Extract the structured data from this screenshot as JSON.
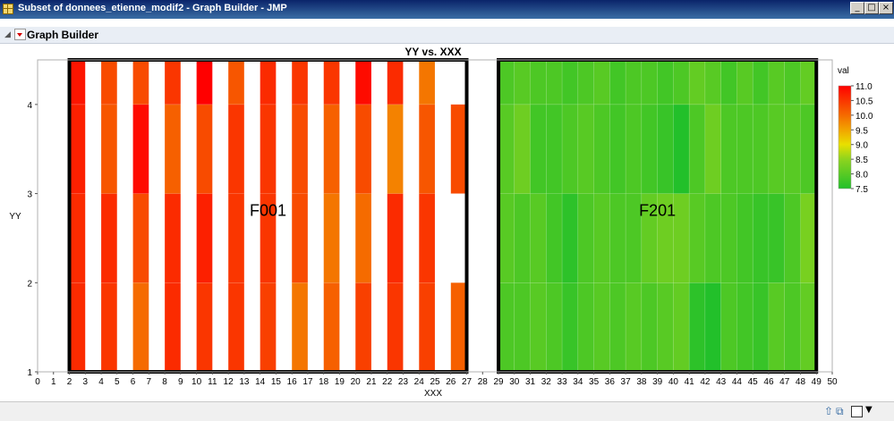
{
  "window": {
    "title": "Subset of donnees_etienne_modif2 - Graph Builder - JMP",
    "minimize_icon": "minimize-icon",
    "maximize_icon": "maximize-icon",
    "close_icon": "close-icon"
  },
  "outline": {
    "title": "Graph Builder",
    "disclosure_icon": "disclosure-triangle-icon",
    "menu_icon": "red-triangle-menu-icon"
  },
  "chart_data": {
    "type": "heatmap",
    "title": "YY vs. XXX",
    "xlabel": "XXX",
    "ylabel": "YY",
    "xlim": [
      0,
      50
    ],
    "ylim": [
      1,
      4.5
    ],
    "x_ticks": [
      0,
      1,
      2,
      3,
      4,
      5,
      6,
      7,
      8,
      9,
      10,
      11,
      12,
      13,
      14,
      15,
      16,
      17,
      18,
      19,
      20,
      21,
      22,
      23,
      24,
      25,
      26,
      27,
      28,
      29,
      30,
      31,
      32,
      33,
      34,
      35,
      36,
      37,
      38,
      39,
      40,
      41,
      42,
      43,
      44,
      45,
      46,
      47,
      48,
      49,
      50
    ],
    "y_ticks": [
      1,
      2,
      3,
      4
    ],
    "grid": false,
    "legend": {
      "title": "val",
      "ticks": [
        "11.0",
        "10.5",
        "10.0",
        "9.5",
        "9.0",
        "8.5",
        "8.0",
        "7.5"
      ],
      "min": 7.5,
      "max": 11.0,
      "placement": "right"
    },
    "color_scale": [
      {
        "value": 7.5,
        "color": "#22c02a"
      },
      {
        "value": 8.5,
        "color": "#8ed41e"
      },
      {
        "value": 9.0,
        "color": "#e8e000"
      },
      {
        "value": 9.5,
        "color": "#f2a400"
      },
      {
        "value": 10.0,
        "color": "#f56b00"
      },
      {
        "value": 11.0,
        "color": "#ff0000"
      }
    ],
    "row_bands": [
      [
        1,
        2
      ],
      [
        2,
        3
      ],
      [
        3,
        4
      ],
      [
        4,
        4.5
      ]
    ],
    "panels": [
      {
        "label": "F001",
        "x_range": [
          2,
          27
        ]
      },
      {
        "label": "F201",
        "x_range": [
          29,
          49
        ]
      }
    ],
    "columns": [
      {
        "x": 3,
        "vals": [
          10.6,
          10.6,
          10.7,
          10.8
        ]
      },
      {
        "x": 5,
        "vals": [
          10.5,
          10.6,
          10.2,
          10.3
        ]
      },
      {
        "x": 7,
        "vals": [
          10.0,
          10.3,
          10.9,
          10.3
        ]
      },
      {
        "x": 9,
        "vals": [
          10.6,
          10.6,
          10.1,
          10.5
        ]
      },
      {
        "x": 11,
        "vals": [
          10.5,
          10.7,
          10.3,
          11.0
        ]
      },
      {
        "x": 13,
        "vals": [
          10.5,
          10.5,
          10.5,
          10.2
        ]
      },
      {
        "x": 15,
        "vals": [
          10.4,
          10.5,
          10.5,
          10.6
        ]
      },
      {
        "x": 17,
        "vals": [
          9.9,
          10.3,
          10.3,
          10.5
        ]
      },
      {
        "x": 19,
        "vals": [
          10.1,
          9.9,
          10.1,
          10.5
        ]
      },
      {
        "x": 21,
        "vals": [
          10.4,
          10.0,
          10.3,
          10.9
        ]
      },
      {
        "x": 23,
        "vals": [
          10.5,
          10.6,
          9.8,
          10.6
        ]
      },
      {
        "x": 25,
        "vals": [
          10.4,
          10.5,
          10.2,
          9.9
        ]
      },
      {
        "x": 27,
        "vals": [
          10.1,
          null,
          10.3,
          null
        ]
      },
      {
        "x": 30,
        "vals": [
          7.9,
          8.0,
          8.0,
          7.9
        ]
      },
      {
        "x": 31,
        "vals": [
          7.9,
          7.9,
          8.2,
          8.0
        ]
      },
      {
        "x": 32,
        "vals": [
          8.0,
          8.0,
          7.8,
          7.9
        ]
      },
      {
        "x": 33,
        "vals": [
          7.9,
          7.8,
          7.8,
          7.9
        ]
      },
      {
        "x": 34,
        "vals": [
          7.7,
          7.6,
          7.9,
          7.8
        ]
      },
      {
        "x": 35,
        "vals": [
          7.9,
          7.9,
          8.0,
          7.9
        ]
      },
      {
        "x": 36,
        "vals": [
          8.0,
          8.0,
          7.9,
          8.0
        ]
      },
      {
        "x": 37,
        "vals": [
          7.9,
          7.9,
          7.8,
          7.8
        ]
      },
      {
        "x": 38,
        "vals": [
          8.0,
          7.9,
          7.9,
          7.9
        ]
      },
      {
        "x": 39,
        "vals": [
          7.9,
          8.1,
          7.8,
          7.9
        ]
      },
      {
        "x": 40,
        "vals": [
          8.0,
          8.2,
          7.7,
          7.8
        ]
      },
      {
        "x": 41,
        "vals": [
          8.1,
          8.2,
          7.5,
          7.9
        ]
      },
      {
        "x": 42,
        "vals": [
          7.6,
          8.0,
          7.9,
          8.1
        ]
      },
      {
        "x": 43,
        "vals": [
          7.5,
          7.9,
          8.2,
          8.0
        ]
      },
      {
        "x": 44,
        "vals": [
          7.9,
          7.9,
          7.9,
          7.8
        ]
      },
      {
        "x": 45,
        "vals": [
          7.8,
          7.8,
          7.9,
          8.0
        ]
      },
      {
        "x": 46,
        "vals": [
          7.7,
          7.7,
          7.9,
          7.8
        ]
      },
      {
        "x": 47,
        "vals": [
          8.0,
          7.7,
          8.0,
          8.0
        ]
      },
      {
        "x": 48,
        "vals": [
          7.9,
          7.9,
          8.0,
          7.9
        ]
      },
      {
        "x": 49,
        "vals": [
          8.1,
          8.3,
          7.9,
          8.1
        ]
      }
    ]
  },
  "statusbar": {
    "nav_icon": "arrow-up-icon",
    "window_icon": "window-list-icon",
    "dropdown_icon": "chevron-down-icon"
  }
}
